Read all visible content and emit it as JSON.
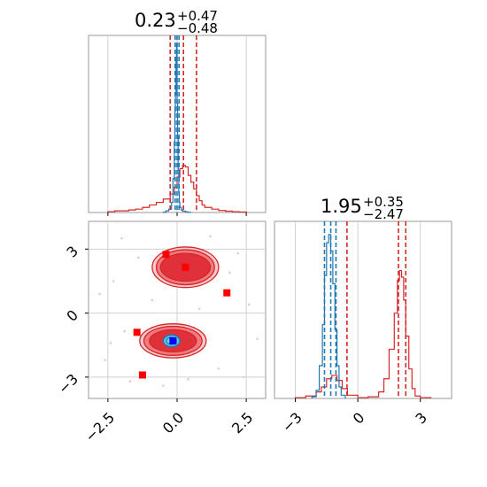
{
  "chart_data": {
    "type": "corner",
    "colors": {
      "red": "#d62728",
      "red_fill_dark": "#e0303a",
      "red_fill_mid": "#ee7b80",
      "red_fill_light": "#f9c9cb",
      "blue": "#1f77b4",
      "cyan": "#4fc3e0",
      "marker_red": "#ff0000",
      "marker_blue": "#0000ff",
      "scatter": "#f0c6ca"
    },
    "param1": {
      "title": {
        "value": "0.23",
        "plus": "+0.47",
        "minus": "−0.48"
      },
      "xlim": [
        -3.2,
        3.2
      ],
      "xticks": [
        {
          "v": -2.5,
          "label": "−2.5"
        },
        {
          "v": 0.0,
          "label": "0.0"
        },
        {
          "v": 2.5,
          "label": "2.5"
        }
      ],
      "red_quantiles": [
        -0.25,
        0.23,
        0.7
      ],
      "blue_quantiles": [
        -0.07,
        0.0,
        0.07
      ],
      "red_hist": {
        "bins": [
          -2.5,
          -2.25,
          -2.0,
          -1.75,
          -1.5,
          -1.25,
          -1.0,
          -0.75,
          -0.5,
          -0.25,
          -0.1,
          0.0,
          0.1,
          0.2,
          0.3,
          0.4,
          0.5,
          0.6,
          0.7,
          0.8,
          0.9,
          1.0,
          1.25,
          1.5,
          1.75,
          2.0,
          2.25,
          2.5
        ],
        "counts": [
          0.005,
          0.01,
          0.01,
          0.015,
          0.02,
          0.03,
          0.045,
          0.06,
          0.08,
          0.11,
          0.15,
          0.21,
          0.26,
          0.28,
          0.27,
          0.22,
          0.18,
          0.14,
          0.1,
          0.07,
          0.045,
          0.03,
          0.02,
          0.012,
          0.008,
          0.005,
          0.003
        ]
      },
      "blue_hist": {
        "bins": [
          -0.5,
          -0.4,
          -0.3,
          -0.2,
          -0.15,
          -0.1,
          -0.08,
          -0.06,
          -0.04,
          -0.02,
          0.0,
          0.02,
          0.04,
          0.06,
          0.08,
          0.1,
          0.15,
          0.2,
          0.3,
          0.4,
          0.5
        ],
        "counts": [
          0.002,
          0.01,
          0.02,
          0.06,
          0.2,
          0.42,
          0.6,
          0.7,
          0.92,
          1.0,
          0.65,
          0.45,
          0.25,
          0.12,
          0.06,
          0.03,
          0.015,
          0.008,
          0.004,
          0.001
        ]
      },
      "ymax": 1.05
    },
    "param2": {
      "title": {
        "value": "1.95",
        "plus": "+0.35",
        "minus": "−2.47"
      },
      "xlim": [
        -4.0,
        4.5
      ],
      "xticks": [
        {
          "v": -3,
          "label": "−3"
        },
        {
          "v": 0,
          "label": "0"
        },
        {
          "v": 3,
          "label": "3"
        }
      ],
      "red_quantiles": [
        -0.52,
        1.95,
        2.3
      ],
      "blue_quantiles": [
        -1.6,
        -1.3,
        -1.05
      ],
      "red_hist": {
        "bins": [
          -3.0,
          -2.5,
          -2.0,
          -1.75,
          -1.5,
          -1.25,
          -1.0,
          -0.75,
          -0.5,
          0.0,
          0.5,
          1.0,
          1.25,
          1.5,
          1.75,
          1.9,
          2.0,
          2.1,
          2.2,
          2.3,
          2.45,
          2.6,
          2.75,
          3.0,
          3.5
        ],
        "counts": [
          0.005,
          0.015,
          0.04,
          0.07,
          0.12,
          0.14,
          0.11,
          0.06,
          0.02,
          0.005,
          0.01,
          0.04,
          0.12,
          0.3,
          0.52,
          0.72,
          0.78,
          0.74,
          0.6,
          0.38,
          0.18,
          0.06,
          0.015,
          0.005
        ]
      },
      "blue_hist": {
        "bins": [
          -2.2,
          -2.0,
          -1.85,
          -1.7,
          -1.6,
          -1.5,
          -1.4,
          -1.3,
          -1.2,
          -1.1,
          -1.0,
          -0.9,
          -0.8,
          -0.6
        ],
        "counts": [
          0.01,
          0.05,
          0.2,
          0.45,
          0.75,
          0.95,
          1.0,
          0.9,
          0.7,
          0.42,
          0.2,
          0.07,
          0.02
        ]
      },
      "ymax": 1.08
    },
    "joint": {
      "xlim": [
        -3.2,
        3.2
      ],
      "ylim": [
        -4.0,
        4.3
      ],
      "yticks": [
        {
          "v": 3,
          "label": "3"
        },
        {
          "v": 0,
          "label": "0"
        },
        {
          "v": -3,
          "label": "−3"
        }
      ],
      "red_blobs": [
        {
          "cx": 0.3,
          "cy": 2.15,
          "rx": [
            1.2,
            1.05,
            0.9
          ],
          "ry": [
            0.95,
            0.82,
            0.65
          ]
        },
        {
          "cx": -0.15,
          "cy": -1.3,
          "rx": [
            1.2,
            1.05,
            0.85
          ],
          "ry": [
            0.8,
            0.68,
            0.52
          ]
        }
      ],
      "blue_blob": {
        "cx": -0.2,
        "cy": -1.3,
        "rx": 0.3,
        "ry": 0.28
      },
      "red_markers": [
        {
          "x": -0.4,
          "y": 2.75
        },
        {
          "x": 0.3,
          "y": 2.15
        },
        {
          "x": 1.8,
          "y": 0.95
        },
        {
          "x": -1.45,
          "y": -0.9
        },
        {
          "x": -1.25,
          "y": -2.9
        }
      ],
      "blue_markers": [
        {
          "x": -0.15,
          "y": -1.3
        }
      ],
      "stray_points": [
        {
          "x": -1.9,
          "y": -0.85
        },
        {
          "x": -2.3,
          "y": 1.5
        },
        {
          "x": -1.4,
          "y": 2.6
        },
        {
          "x": 2.2,
          "y": 2.8
        },
        {
          "x": 2.6,
          "y": 0.4
        },
        {
          "x": -2.6,
          "y": -2.2
        },
        {
          "x": 1.5,
          "y": -2.6
        },
        {
          "x": -0.9,
          "y": 0.6
        },
        {
          "x": 0.8,
          "y": 0.2
        },
        {
          "x": -2.0,
          "y": 3.5
        },
        {
          "x": 2.9,
          "y": -1.2
        },
        {
          "x": -0.5,
          "y": -3.4
        },
        {
          "x": 1.2,
          "y": 3.6
        },
        {
          "x": -2.8,
          "y": 0.9
        },
        {
          "x": 0.4,
          "y": -3.1
        },
        {
          "x": 2.4,
          "y": -3.0
        },
        {
          "x": -1.7,
          "y": -3.2
        },
        {
          "x": 1.9,
          "y": 1.9
        },
        {
          "x": -2.4,
          "y": -1.4
        }
      ]
    }
  }
}
